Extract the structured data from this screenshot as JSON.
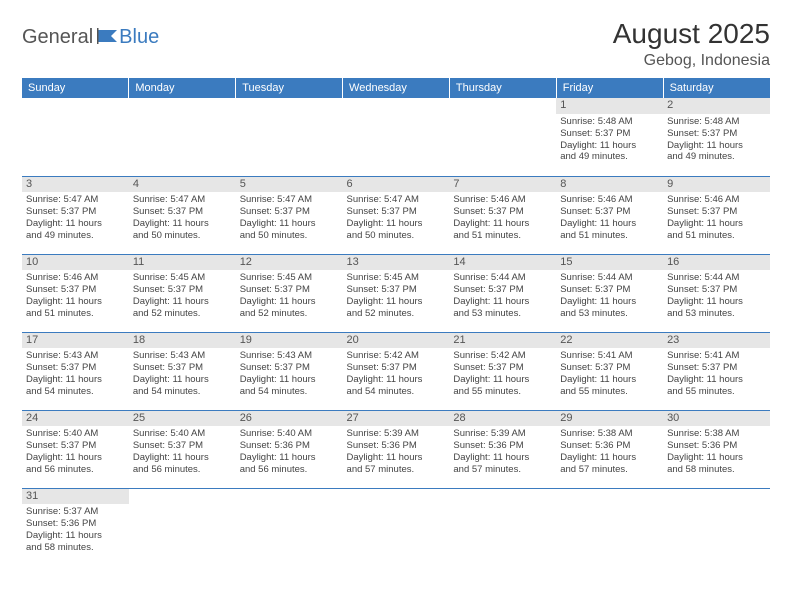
{
  "brand": {
    "part1": "General",
    "part2": "Blue"
  },
  "title": "August 2025",
  "location": "Gebog, Indonesia",
  "colors": {
    "header_bg": "#3b7bbf",
    "header_text": "#ffffff",
    "daynum_bg": "#e6e6e6",
    "daynum_text": "#555555",
    "cell_border": "#3b7bbf",
    "body_text": "#444444",
    "logo_accent": "#3b7bbf"
  },
  "weekdays": [
    "Sunday",
    "Monday",
    "Tuesday",
    "Wednesday",
    "Thursday",
    "Friday",
    "Saturday"
  ],
  "weeks": [
    [
      null,
      null,
      null,
      null,
      null,
      {
        "n": "1",
        "sr": "Sunrise: 5:48 AM",
        "ss": "Sunset: 5:37 PM",
        "d1": "Daylight: 11 hours",
        "d2": "and 49 minutes."
      },
      {
        "n": "2",
        "sr": "Sunrise: 5:48 AM",
        "ss": "Sunset: 5:37 PM",
        "d1": "Daylight: 11 hours",
        "d2": "and 49 minutes."
      }
    ],
    [
      {
        "n": "3",
        "sr": "Sunrise: 5:47 AM",
        "ss": "Sunset: 5:37 PM",
        "d1": "Daylight: 11 hours",
        "d2": "and 49 minutes."
      },
      {
        "n": "4",
        "sr": "Sunrise: 5:47 AM",
        "ss": "Sunset: 5:37 PM",
        "d1": "Daylight: 11 hours",
        "d2": "and 50 minutes."
      },
      {
        "n": "5",
        "sr": "Sunrise: 5:47 AM",
        "ss": "Sunset: 5:37 PM",
        "d1": "Daylight: 11 hours",
        "d2": "and 50 minutes."
      },
      {
        "n": "6",
        "sr": "Sunrise: 5:47 AM",
        "ss": "Sunset: 5:37 PM",
        "d1": "Daylight: 11 hours",
        "d2": "and 50 minutes."
      },
      {
        "n": "7",
        "sr": "Sunrise: 5:46 AM",
        "ss": "Sunset: 5:37 PM",
        "d1": "Daylight: 11 hours",
        "d2": "and 51 minutes."
      },
      {
        "n": "8",
        "sr": "Sunrise: 5:46 AM",
        "ss": "Sunset: 5:37 PM",
        "d1": "Daylight: 11 hours",
        "d2": "and 51 minutes."
      },
      {
        "n": "9",
        "sr": "Sunrise: 5:46 AM",
        "ss": "Sunset: 5:37 PM",
        "d1": "Daylight: 11 hours",
        "d2": "and 51 minutes."
      }
    ],
    [
      {
        "n": "10",
        "sr": "Sunrise: 5:46 AM",
        "ss": "Sunset: 5:37 PM",
        "d1": "Daylight: 11 hours",
        "d2": "and 51 minutes."
      },
      {
        "n": "11",
        "sr": "Sunrise: 5:45 AM",
        "ss": "Sunset: 5:37 PM",
        "d1": "Daylight: 11 hours",
        "d2": "and 52 minutes."
      },
      {
        "n": "12",
        "sr": "Sunrise: 5:45 AM",
        "ss": "Sunset: 5:37 PM",
        "d1": "Daylight: 11 hours",
        "d2": "and 52 minutes."
      },
      {
        "n": "13",
        "sr": "Sunrise: 5:45 AM",
        "ss": "Sunset: 5:37 PM",
        "d1": "Daylight: 11 hours",
        "d2": "and 52 minutes."
      },
      {
        "n": "14",
        "sr": "Sunrise: 5:44 AM",
        "ss": "Sunset: 5:37 PM",
        "d1": "Daylight: 11 hours",
        "d2": "and 53 minutes."
      },
      {
        "n": "15",
        "sr": "Sunrise: 5:44 AM",
        "ss": "Sunset: 5:37 PM",
        "d1": "Daylight: 11 hours",
        "d2": "and 53 minutes."
      },
      {
        "n": "16",
        "sr": "Sunrise: 5:44 AM",
        "ss": "Sunset: 5:37 PM",
        "d1": "Daylight: 11 hours",
        "d2": "and 53 minutes."
      }
    ],
    [
      {
        "n": "17",
        "sr": "Sunrise: 5:43 AM",
        "ss": "Sunset: 5:37 PM",
        "d1": "Daylight: 11 hours",
        "d2": "and 54 minutes."
      },
      {
        "n": "18",
        "sr": "Sunrise: 5:43 AM",
        "ss": "Sunset: 5:37 PM",
        "d1": "Daylight: 11 hours",
        "d2": "and 54 minutes."
      },
      {
        "n": "19",
        "sr": "Sunrise: 5:43 AM",
        "ss": "Sunset: 5:37 PM",
        "d1": "Daylight: 11 hours",
        "d2": "and 54 minutes."
      },
      {
        "n": "20",
        "sr": "Sunrise: 5:42 AM",
        "ss": "Sunset: 5:37 PM",
        "d1": "Daylight: 11 hours",
        "d2": "and 54 minutes."
      },
      {
        "n": "21",
        "sr": "Sunrise: 5:42 AM",
        "ss": "Sunset: 5:37 PM",
        "d1": "Daylight: 11 hours",
        "d2": "and 55 minutes."
      },
      {
        "n": "22",
        "sr": "Sunrise: 5:41 AM",
        "ss": "Sunset: 5:37 PM",
        "d1": "Daylight: 11 hours",
        "d2": "and 55 minutes."
      },
      {
        "n": "23",
        "sr": "Sunrise: 5:41 AM",
        "ss": "Sunset: 5:37 PM",
        "d1": "Daylight: 11 hours",
        "d2": "and 55 minutes."
      }
    ],
    [
      {
        "n": "24",
        "sr": "Sunrise: 5:40 AM",
        "ss": "Sunset: 5:37 PM",
        "d1": "Daylight: 11 hours",
        "d2": "and 56 minutes."
      },
      {
        "n": "25",
        "sr": "Sunrise: 5:40 AM",
        "ss": "Sunset: 5:37 PM",
        "d1": "Daylight: 11 hours",
        "d2": "and 56 minutes."
      },
      {
        "n": "26",
        "sr": "Sunrise: 5:40 AM",
        "ss": "Sunset: 5:36 PM",
        "d1": "Daylight: 11 hours",
        "d2": "and 56 minutes."
      },
      {
        "n": "27",
        "sr": "Sunrise: 5:39 AM",
        "ss": "Sunset: 5:36 PM",
        "d1": "Daylight: 11 hours",
        "d2": "and 57 minutes."
      },
      {
        "n": "28",
        "sr": "Sunrise: 5:39 AM",
        "ss": "Sunset: 5:36 PM",
        "d1": "Daylight: 11 hours",
        "d2": "and 57 minutes."
      },
      {
        "n": "29",
        "sr": "Sunrise: 5:38 AM",
        "ss": "Sunset: 5:36 PM",
        "d1": "Daylight: 11 hours",
        "d2": "and 57 minutes."
      },
      {
        "n": "30",
        "sr": "Sunrise: 5:38 AM",
        "ss": "Sunset: 5:36 PM",
        "d1": "Daylight: 11 hours",
        "d2": "and 58 minutes."
      }
    ],
    [
      {
        "n": "31",
        "sr": "Sunrise: 5:37 AM",
        "ss": "Sunset: 5:36 PM",
        "d1": "Daylight: 11 hours",
        "d2": "and 58 minutes."
      },
      null,
      null,
      null,
      null,
      null,
      null
    ]
  ]
}
